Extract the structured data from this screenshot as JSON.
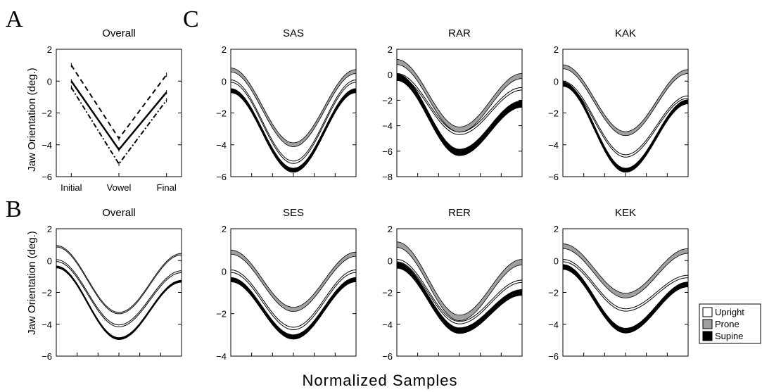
{
  "panel_labels": {
    "a": "A",
    "b": "B",
    "c": "C"
  },
  "ylabel": "Jaw Orientation (deg.)",
  "xlabel_common": "Normalized Samples",
  "legend": [
    {
      "label": "Upright",
      "color": "#ffffff"
    },
    {
      "label": "Prone",
      "color": "#a0a0a0"
    },
    {
      "label": "Supine",
      "color": "#000000"
    }
  ],
  "chart_data": [
    {
      "id": "A",
      "type": "line",
      "title": "Overall",
      "categories": [
        "Initial",
        "Vowel",
        "Final"
      ],
      "ylim": [
        -6,
        2
      ],
      "yticks": [
        2,
        0,
        -2,
        -4,
        -6
      ],
      "series": [
        {
          "style": "solid",
          "values": [
            0.0,
            -4.3,
            -0.7
          ]
        },
        {
          "style": "dashed",
          "values": [
            1.0,
            -3.6,
            0.4
          ]
        },
        {
          "style": "dashdot",
          "values": [
            -0.4,
            -5.2,
            -1.2
          ]
        }
      ]
    },
    {
      "id": "B",
      "type": "area",
      "title": "Overall",
      "ylim": [
        -6,
        2
      ],
      "yticks": [
        2,
        0,
        -2,
        -4,
        -6
      ],
      "series": [
        {
          "name": "Upright",
          "start": 0.0,
          "min": -4.1,
          "end": -0.7,
          "width": 0.12
        },
        {
          "name": "Prone",
          "start": 0.9,
          "min": -3.3,
          "end": 0.4,
          "width": 0.1
        },
        {
          "name": "Supine",
          "start": -0.4,
          "min": -4.9,
          "end": -1.3,
          "width": 0.12
        }
      ]
    },
    {
      "id": "SAS",
      "type": "area",
      "title": "SAS",
      "ylim": [
        -6,
        2
      ],
      "yticks": [
        2,
        0,
        -2,
        -4,
        -6
      ],
      "series": [
        {
          "name": "Upright",
          "start": 0.0,
          "min": -5.1,
          "end": 0.0,
          "width": 0.15
        },
        {
          "name": "Prone",
          "start": 0.7,
          "min": -4.0,
          "end": 0.6,
          "width": 0.25
        },
        {
          "name": "Supine",
          "start": -0.6,
          "min": -5.6,
          "end": -0.6,
          "width": 0.25
        }
      ]
    },
    {
      "id": "RAR",
      "type": "area",
      "title": "RAR",
      "ylim": [
        -8,
        2
      ],
      "yticks": [
        2,
        0,
        -2,
        -4,
        -6,
        -8
      ],
      "series": [
        {
          "name": "Upright",
          "start": 0.0,
          "min": -4.6,
          "end": -1.1,
          "width": 0.2
        },
        {
          "name": "Prone",
          "start": 1.0,
          "min": -4.3,
          "end": -0.1,
          "width": 0.4
        },
        {
          "name": "Supine",
          "start": -0.2,
          "min": -6.1,
          "end": -2.3,
          "width": 0.5
        }
      ]
    },
    {
      "id": "KAK",
      "type": "area",
      "title": "KAK",
      "ylim": [
        -6,
        2
      ],
      "yticks": [
        2,
        0,
        -2,
        -4,
        -6
      ],
      "series": [
        {
          "name": "Upright",
          "start": -0.1,
          "min": -4.7,
          "end": -1.0,
          "width": 0.15
        },
        {
          "name": "Prone",
          "start": 0.9,
          "min": -3.3,
          "end": 0.6,
          "width": 0.25
        },
        {
          "name": "Supine",
          "start": -0.2,
          "min": -5.6,
          "end": -1.3,
          "width": 0.25
        }
      ]
    },
    {
      "id": "SES",
      "type": "area",
      "title": "SES",
      "ylim": [
        -4,
        2
      ],
      "yticks": [
        2,
        0,
        -2,
        -4
      ],
      "series": [
        {
          "name": "Upright",
          "start": 0.0,
          "min": -2.7,
          "end": 0.0,
          "width": 0.12
        },
        {
          "name": "Prone",
          "start": 0.9,
          "min": -1.8,
          "end": 0.8,
          "width": 0.2
        },
        {
          "name": "Supine",
          "start": -0.4,
          "min": -3.1,
          "end": -0.4,
          "width": 0.2
        }
      ]
    },
    {
      "id": "RER",
      "type": "area",
      "title": "RER",
      "ylim": [
        -6,
        2
      ],
      "yticks": [
        2,
        0,
        -2,
        -4,
        -6
      ],
      "series": [
        {
          "name": "Upright",
          "start": 0.0,
          "min": -3.9,
          "end": -1.3,
          "width": 0.15
        },
        {
          "name": "Prone",
          "start": 1.0,
          "min": -3.6,
          "end": -0.1,
          "width": 0.35
        },
        {
          "name": "Supine",
          "start": -0.3,
          "min": -4.4,
          "end": -2.0,
          "width": 0.35
        }
      ]
    },
    {
      "id": "KEK",
      "type": "area",
      "title": "KEK",
      "ylim": [
        -6,
        2
      ],
      "yticks": [
        2,
        0,
        -2,
        -4,
        -6
      ],
      "series": [
        {
          "name": "Upright",
          "start": 0.0,
          "min": -3.1,
          "end": -1.0,
          "width": 0.15
        },
        {
          "name": "Prone",
          "start": 0.9,
          "min": -2.2,
          "end": 0.6,
          "width": 0.3
        },
        {
          "name": "Supine",
          "start": -0.4,
          "min": -4.4,
          "end": -1.5,
          "width": 0.3
        }
      ]
    }
  ]
}
